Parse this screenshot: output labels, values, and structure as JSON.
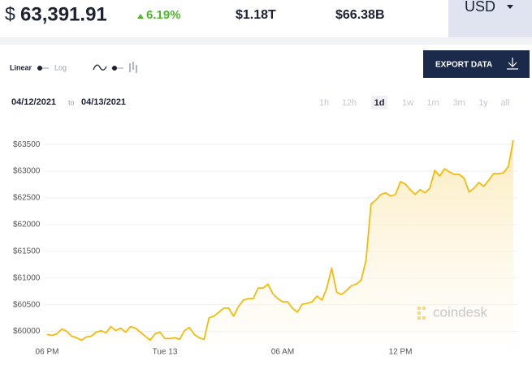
{
  "header": {
    "currency_symbol": "$",
    "price": "63,391.91",
    "change": "6.19%",
    "market_cap": "$1.18T",
    "volume": "$66.38B",
    "currency": "USD"
  },
  "controls": {
    "linear": "Linear",
    "log": "Log",
    "export": "EXPORT DATA",
    "date_from": "04/12/2021",
    "date_sep": "to",
    "date_to": "04/13/2021",
    "ranges": [
      {
        "label": "1h",
        "selected": false
      },
      {
        "label": "12h",
        "selected": false
      },
      {
        "label": "1d",
        "selected": true
      },
      {
        "label": "1w",
        "selected": false
      },
      {
        "label": "1m",
        "selected": false
      },
      {
        "label": "3m",
        "selected": false
      },
      {
        "label": "1y",
        "selected": false
      },
      {
        "label": "all",
        "selected": false
      }
    ],
    "watermark": "coindesk"
  },
  "chart_data": {
    "type": "line",
    "color": "#f4bb0c",
    "area": true,
    "grid": true,
    "ylim": [
      59750,
      63700
    ],
    "yticks": [
      {
        "value": 60000,
        "label": "$60000"
      },
      {
        "value": 60500,
        "label": "$60500"
      },
      {
        "value": 61000,
        "label": "$61000"
      },
      {
        "value": 61500,
        "label": "$61500"
      },
      {
        "value": 62000,
        "label": "$62000"
      },
      {
        "value": 62500,
        "label": "$62500"
      },
      {
        "value": 63000,
        "label": "$63000"
      },
      {
        "value": 63500,
        "label": "$63500"
      }
    ],
    "categories": [
      "06 PM",
      null,
      null,
      null,
      null,
      null,
      null,
      null,
      null,
      null,
      null,
      null,
      null,
      null,
      null,
      null,
      null,
      null,
      null,
      null,
      null,
      null,
      null,
      null,
      "Tue 13",
      null,
      null,
      null,
      null,
      null,
      null,
      null,
      null,
      null,
      null,
      null,
      null,
      null,
      null,
      null,
      null,
      null,
      null,
      null,
      null,
      null,
      null,
      null,
      "06 AM",
      null,
      null,
      null,
      null,
      null,
      null,
      null,
      null,
      null,
      null,
      null,
      null,
      null,
      null,
      null,
      null,
      null,
      null,
      null,
      null,
      null,
      null,
      null,
      "12 PM",
      null,
      null,
      null,
      null,
      null,
      null,
      null,
      null,
      null,
      null,
      null,
      null,
      null,
      null,
      null,
      null,
      null,
      null,
      null,
      null,
      null,
      null,
      null
    ],
    "values": [
      59940,
      59925,
      59955,
      60045,
      60000,
      59910,
      59880,
      59835,
      59895,
      59910,
      59985,
      60015,
      59970,
      60090,
      60015,
      60060,
      59985,
      60090,
      60060,
      59985,
      59910,
      59835,
      59955,
      59985,
      59865,
      59865,
      59880,
      59850,
      60015,
      60075,
      59940,
      59880,
      59850,
      60255,
      60285,
      60360,
      60435,
      60435,
      60285,
      60465,
      60585,
      60615,
      60615,
      60810,
      60810,
      60885,
      60705,
      60615,
      60555,
      60555,
      60435,
      60360,
      60510,
      60525,
      60555,
      60660,
      60585,
      60810,
      61185,
      60735,
      60690,
      60765,
      60855,
      60885,
      60960,
      61335,
      62385,
      62460,
      62565,
      62595,
      62535,
      62565,
      62805,
      62760,
      62655,
      62565,
      62655,
      62595,
      62685,
      63015,
      62910,
      63045,
      62985,
      62940,
      62940,
      62865,
      62610,
      62685,
      62790,
      62715,
      62835,
      62955,
      62955,
      62970,
      63090,
      63585
    ]
  }
}
